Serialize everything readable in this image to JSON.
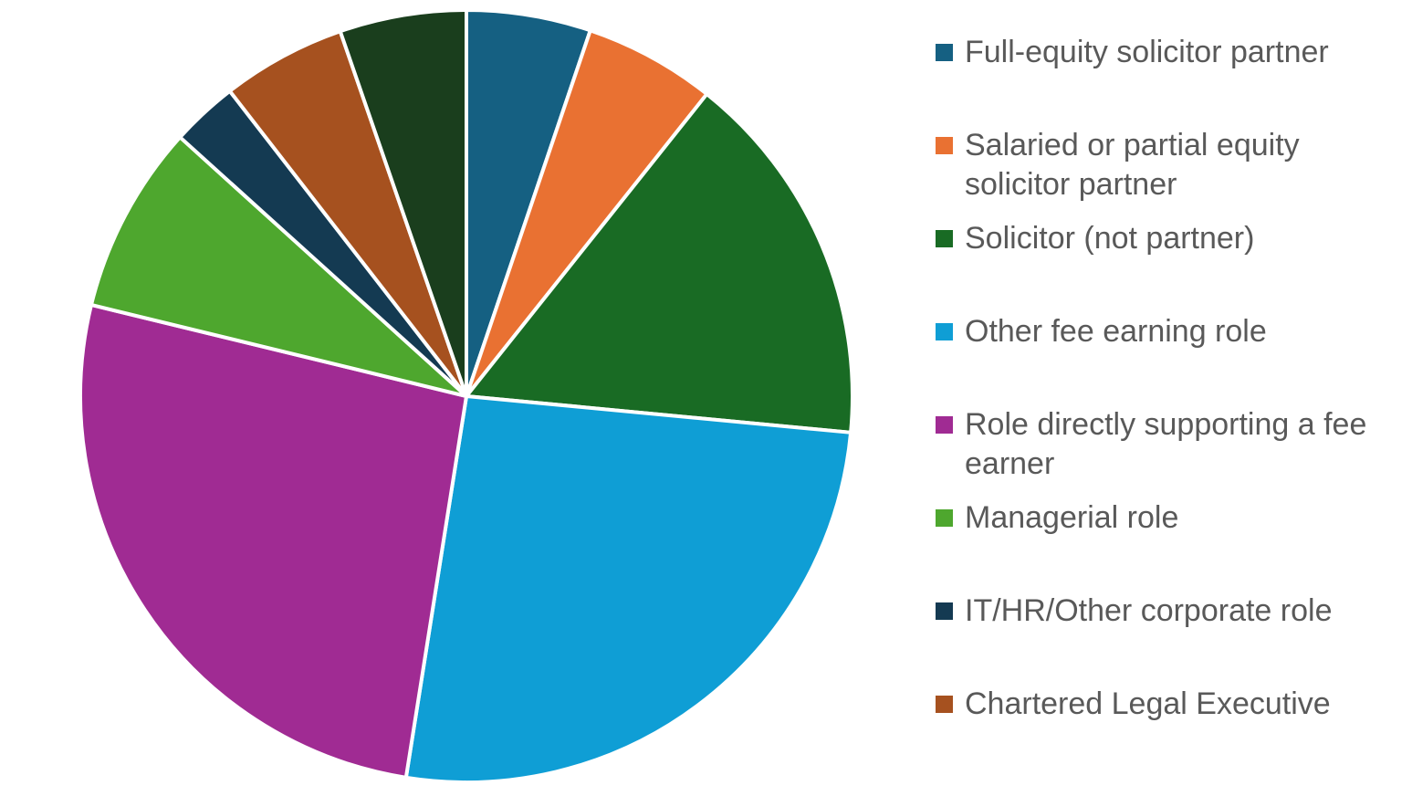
{
  "page": {
    "background_color": "#FFFFFF",
    "legend_text_color": "#595959",
    "slice_border_color": "#FFFFFF"
  },
  "chart_data": {
    "type": "pie",
    "legend_position": "right",
    "start_angle_deg": 0,
    "direction": "clockwise",
    "slices": [
      {
        "label": "Full-equity solicitor partner",
        "percent": 5.2,
        "color": "#156082",
        "in_legend": true
      },
      {
        "label": "Salaried or partial equity solicitor partner",
        "percent": 5.5,
        "color": "#E97132",
        "in_legend": true
      },
      {
        "label": "Solicitor (not partner)",
        "percent": 15.8,
        "color": "#196B24",
        "in_legend": true
      },
      {
        "label": "Other fee earning role",
        "percent": 26.0,
        "color": "#0F9ED5",
        "in_legend": true
      },
      {
        "label": "Role directly supporting a fee earner",
        "percent": 26.3,
        "color": "#A02B93",
        "in_legend": true
      },
      {
        "label": "Managerial role",
        "percent": 7.9,
        "color": "#4EA72E",
        "in_legend": true
      },
      {
        "label": "IT/HR/Other corporate role",
        "percent": 2.8,
        "color": "#143A52",
        "in_legend": true
      },
      {
        "label": "Chartered Legal Executive",
        "percent": 5.2,
        "color": "#A6511F",
        "in_legend": true
      },
      {
        "label": "",
        "percent": 5.3,
        "color": "#1A3E1D",
        "in_legend": false
      }
    ]
  }
}
